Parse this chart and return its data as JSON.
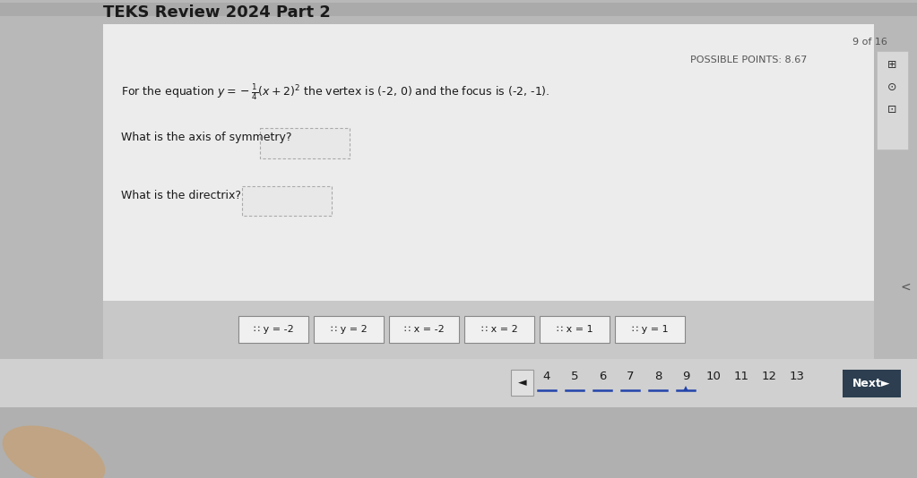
{
  "title": "TEKS Review 2024 Part 2",
  "possible_points": "POSSIBLE POINTS: 8.67",
  "page_indicator": "9 of 16",
  "question1": "What is the axis of symmetry?",
  "question2": "What is the directrix?",
  "answer_tiles_display": [
    "∷ y = -2",
    "∷ y = 2",
    "∷ x = -2",
    "∷ x = 2",
    "∷ x = 1",
    "∷ y = 1"
  ],
  "page_numbers": [
    "4",
    "5",
    "6",
    "7",
    "8",
    "9",
    "10",
    "11",
    "12",
    "13"
  ],
  "underlined_pages": [
    "4",
    "5",
    "6",
    "7",
    "8",
    "9"
  ],
  "current_page": "9",
  "outer_bg": "#b8b8b8",
  "header_bg": "#c0c0c0",
  "content_bg": "#e0e0e0",
  "white_area_bg": "#e8e8e8",
  "tiles_bar_bg": "#c8c8c8",
  "nav_bar_bg": "#d0d0d0",
  "tile_bg": "#f0f0f0",
  "tile_border": "#888888",
  "text_color": "#1a1a1a",
  "gray_text": "#555555",
  "nav_dark_bg": "#2c3e50",
  "nav_text": "#ffffff",
  "underline_color": "#2244aa",
  "drop_box_bg": "#e8e8e8",
  "drop_box_border": "#aaaaaa",
  "icon_area_bg": "#d8d8d8",
  "icon_border": "#bbbbbb",
  "back_btn_bg": "#e0e0e0",
  "small_arrow_color": "#555555"
}
